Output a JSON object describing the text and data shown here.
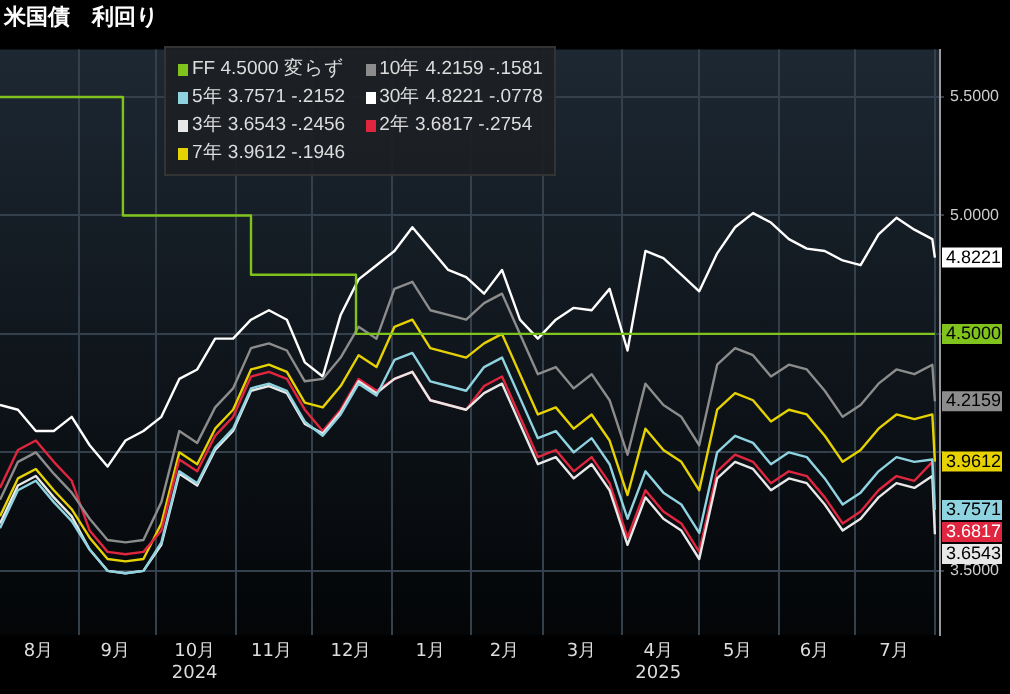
{
  "chart_data": {
    "type": "line",
    "title": "米国債　利回り",
    "x": [
      "2024-08-01",
      "2024-08-08",
      "2024-08-15",
      "2024-08-22",
      "2024-08-29",
      "2024-09-05",
      "2024-09-12",
      "2024-09-19",
      "2024-09-26",
      "2024-10-03",
      "2024-10-10",
      "2024-10-17",
      "2024-10-24",
      "2024-10-31",
      "2024-11-07",
      "2024-11-14",
      "2024-11-21",
      "2024-11-28",
      "2024-12-05",
      "2024-12-12",
      "2024-12-19",
      "2024-12-26",
      "2025-01-02",
      "2025-01-09",
      "2025-01-16",
      "2025-01-23",
      "2025-01-30",
      "2025-02-06",
      "2025-02-13",
      "2025-02-20",
      "2025-02-27",
      "2025-03-06",
      "2025-03-13",
      "2025-03-20",
      "2025-03-27",
      "2025-04-03",
      "2025-04-10",
      "2025-04-17",
      "2025-04-24",
      "2025-05-01",
      "2025-05-08",
      "2025-05-15",
      "2025-05-22",
      "2025-05-29",
      "2025-06-05",
      "2025-06-12",
      "2025-06-19",
      "2025-06-26",
      "2025-07-03",
      "2025-07-10",
      "2025-07-17",
      "2025-07-24",
      "2025-07-31",
      "2025-08-01"
    ],
    "series": [
      {
        "name": "FF 4.5000 変らず",
        "type": "step",
        "color": "#7fc31c",
        "x": [
          "2024-08-01",
          "2024-09-18",
          "2024-11-07",
          "2024-12-18",
          "2025-08-01"
        ],
        "values": [
          5.5,
          5.0,
          4.75,
          4.5,
          4.5
        ],
        "value_labels": [
          null,
          null,
          null,
          null,
          "4.5000"
        ]
      },
      {
        "name": "10年 4.2159 -.1581",
        "color": "#8c8c8c",
        "values": [
          3.8,
          3.96,
          4.0,
          3.91,
          3.83,
          3.72,
          3.63,
          3.62,
          3.63,
          3.79,
          4.09,
          4.04,
          4.19,
          4.27,
          4.44,
          4.46,
          4.43,
          4.3,
          4.31,
          4.4,
          4.53,
          4.48,
          4.69,
          4.72,
          4.6,
          4.58,
          4.56,
          4.63,
          4.67,
          4.5,
          4.33,
          4.36,
          4.27,
          4.33,
          4.22,
          3.99,
          4.29,
          4.2,
          4.15,
          4.03,
          4.37,
          4.44,
          4.41,
          4.32,
          4.37,
          4.35,
          4.26,
          4.15,
          4.2,
          4.29,
          4.35,
          4.33,
          4.37,
          4.2159
        ],
        "value_labels": [
          null,
          null,
          null,
          null,
          null,
          null,
          null,
          null,
          null,
          null,
          null,
          null,
          null,
          null,
          null,
          null,
          null,
          null,
          null,
          null,
          null,
          null,
          null,
          null,
          null,
          null,
          null,
          null,
          null,
          null,
          null,
          null,
          null,
          null,
          null,
          null,
          null,
          null,
          null,
          null,
          null,
          null,
          null,
          null,
          null,
          null,
          null,
          null,
          null,
          null,
          null,
          null,
          null,
          "4.2159"
        ]
      },
      {
        "name": "5年 3.7571 -.2152",
        "color": "#8fd3e0",
        "values": [
          3.68,
          3.84,
          3.88,
          3.79,
          3.71,
          3.59,
          3.5,
          3.49,
          3.5,
          3.62,
          3.92,
          3.87,
          4.02,
          4.1,
          4.27,
          4.29,
          4.26,
          4.13,
          4.07,
          4.16,
          4.29,
          4.24,
          4.39,
          4.42,
          4.3,
          4.28,
          4.26,
          4.36,
          4.4,
          4.23,
          4.06,
          4.09,
          4.0,
          4.06,
          3.95,
          3.72,
          3.92,
          3.83,
          3.78,
          3.66,
          4.0,
          4.07,
          4.04,
          3.95,
          4.0,
          3.98,
          3.89,
          3.78,
          3.83,
          3.92,
          3.98,
          3.96,
          3.97,
          3.7571
        ],
        "value_labels": [
          null,
          null,
          null,
          null,
          null,
          null,
          null,
          null,
          null,
          null,
          null,
          null,
          null,
          null,
          null,
          null,
          null,
          null,
          null,
          null,
          null,
          null,
          null,
          null,
          null,
          null,
          null,
          null,
          null,
          null,
          null,
          null,
          null,
          null,
          null,
          null,
          null,
          null,
          null,
          null,
          null,
          null,
          null,
          null,
          null,
          null,
          null,
          null,
          null,
          null,
          null,
          null,
          null,
          "3.7571"
        ]
      },
      {
        "name": "30年 4.8221 -.0778",
        "color": "#ffffff",
        "values": [
          4.2,
          4.18,
          4.09,
          4.09,
          4.15,
          4.03,
          3.94,
          4.05,
          4.09,
          4.15,
          4.31,
          4.35,
          4.48,
          4.48,
          4.56,
          4.6,
          4.56,
          4.38,
          4.32,
          4.58,
          4.73,
          4.79,
          4.85,
          4.95,
          4.86,
          4.77,
          4.74,
          4.67,
          4.77,
          4.56,
          4.48,
          4.56,
          4.61,
          4.6,
          4.69,
          4.43,
          4.85,
          4.82,
          4.75,
          4.68,
          4.84,
          4.95,
          5.01,
          4.97,
          4.9,
          4.86,
          4.85,
          4.81,
          4.79,
          4.92,
          4.99,
          4.94,
          4.9,
          4.8221
        ],
        "value_labels": [
          null,
          null,
          null,
          null,
          null,
          null,
          null,
          null,
          null,
          null,
          null,
          null,
          null,
          null,
          null,
          null,
          null,
          null,
          null,
          null,
          null,
          null,
          null,
          null,
          null,
          null,
          null,
          null,
          null,
          null,
          null,
          null,
          null,
          null,
          null,
          null,
          null,
          null,
          null,
          null,
          null,
          null,
          null,
          null,
          null,
          null,
          null,
          null,
          null,
          null,
          null,
          null,
          null,
          "4.8221"
        ]
      },
      {
        "name": "3年 3.6543 -.2456",
        "color": "#e8e8e8",
        "values": [
          3.7,
          3.86,
          3.9,
          3.81,
          3.73,
          3.59,
          3.5,
          3.49,
          3.5,
          3.61,
          3.91,
          3.86,
          4.01,
          4.09,
          4.26,
          4.28,
          4.25,
          4.12,
          4.08,
          4.17,
          4.3,
          4.25,
          4.31,
          4.34,
          4.22,
          4.2,
          4.18,
          4.25,
          4.29,
          4.12,
          3.95,
          3.98,
          3.89,
          3.95,
          3.84,
          3.61,
          3.81,
          3.72,
          3.67,
          3.55,
          3.89,
          3.96,
          3.93,
          3.84,
          3.89,
          3.87,
          3.78,
          3.67,
          3.72,
          3.81,
          3.87,
          3.85,
          3.9,
          3.6543
        ],
        "value_labels": [
          null,
          null,
          null,
          null,
          null,
          null,
          null,
          null,
          null,
          null,
          null,
          null,
          null,
          null,
          null,
          null,
          null,
          null,
          null,
          null,
          null,
          null,
          null,
          null,
          null,
          null,
          null,
          null,
          null,
          null,
          null,
          null,
          null,
          null,
          null,
          null,
          null,
          null,
          null,
          null,
          null,
          null,
          null,
          null,
          null,
          null,
          null,
          null,
          null,
          null,
          null,
          null,
          null,
          "3.6543"
        ]
      },
      {
        "name": "2年 3.6817 -.2754",
        "color": "#e0263f",
        "values": [
          3.85,
          4.01,
          4.05,
          3.96,
          3.88,
          3.67,
          3.58,
          3.57,
          3.58,
          3.67,
          3.97,
          3.92,
          4.07,
          4.15,
          4.32,
          4.34,
          4.31,
          4.18,
          4.09,
          4.18,
          4.31,
          4.26,
          4.31,
          4.34,
          4.22,
          4.2,
          4.18,
          4.28,
          4.32,
          4.15,
          3.98,
          4.01,
          3.92,
          3.98,
          3.87,
          3.64,
          3.84,
          3.75,
          3.7,
          3.58,
          3.92,
          3.99,
          3.96,
          3.87,
          3.92,
          3.9,
          3.81,
          3.7,
          3.75,
          3.84,
          3.9,
          3.88,
          3.96,
          3.6817
        ],
        "value_labels": [
          null,
          null,
          null,
          null,
          null,
          null,
          null,
          null,
          null,
          null,
          null,
          null,
          null,
          null,
          null,
          null,
          null,
          null,
          null,
          null,
          null,
          null,
          null,
          null,
          null,
          null,
          null,
          null,
          null,
          null,
          null,
          null,
          null,
          null,
          null,
          null,
          null,
          null,
          null,
          null,
          null,
          null,
          null,
          null,
          null,
          null,
          null,
          null,
          null,
          null,
          null,
          null,
          null,
          "3.6817"
        ]
      },
      {
        "name": "7年 3.9612 -.1946",
        "color": "#e6d200",
        "values": [
          3.73,
          3.89,
          3.93,
          3.84,
          3.76,
          3.64,
          3.55,
          3.54,
          3.55,
          3.7,
          4.0,
          3.95,
          4.1,
          4.18,
          4.35,
          4.37,
          4.34,
          4.21,
          4.19,
          4.28,
          4.41,
          4.36,
          4.53,
          4.56,
          4.44,
          4.42,
          4.4,
          4.46,
          4.5,
          4.33,
          4.16,
          4.19,
          4.1,
          4.16,
          4.05,
          3.82,
          4.1,
          4.01,
          3.96,
          3.84,
          4.18,
          4.25,
          4.22,
          4.13,
          4.18,
          4.16,
          4.07,
          3.96,
          4.01,
          4.1,
          4.16,
          4.14,
          4.16,
          3.9612
        ],
        "value_labels": [
          null,
          null,
          null,
          null,
          null,
          null,
          null,
          null,
          null,
          null,
          null,
          null,
          null,
          null,
          null,
          null,
          null,
          null,
          null,
          null,
          null,
          null,
          null,
          null,
          null,
          null,
          null,
          null,
          null,
          null,
          null,
          null,
          null,
          null,
          null,
          null,
          null,
          null,
          null,
          null,
          null,
          null,
          null,
          null,
          null,
          null,
          null,
          null,
          null,
          null,
          null,
          null,
          null,
          "3.9612"
        ]
      }
    ],
    "xlim": [
      "2024-08-01",
      "2025-08-03"
    ],
    "xticks": [
      {
        "value": "2024-08-16",
        "label": "8月"
      },
      {
        "value": "2024-09-01",
        "label": null
      },
      {
        "value": "2024-09-15",
        "label": "9月"
      },
      {
        "value": "2024-10-01",
        "label": null
      },
      {
        "value": "2024-10-16",
        "label": "10月\n2024"
      },
      {
        "value": "2024-11-01",
        "label": null
      },
      {
        "value": "2024-11-15",
        "label": "11月"
      },
      {
        "value": "2024-12-01",
        "label": null
      },
      {
        "value": "2024-12-16",
        "label": "12月"
      },
      {
        "value": "2025-01-01",
        "label": null
      },
      {
        "value": "2025-01-16",
        "label": "1月"
      },
      {
        "value": "2025-02-01",
        "label": null
      },
      {
        "value": "2025-02-14",
        "label": "2月"
      },
      {
        "value": "2025-03-01",
        "label": null
      },
      {
        "value": "2025-03-16",
        "label": "3月"
      },
      {
        "value": "2025-04-01",
        "label": null
      },
      {
        "value": "2025-04-15",
        "label": "4月\n2025"
      },
      {
        "value": "2025-05-01",
        "label": null
      },
      {
        "value": "2025-05-16",
        "label": "5月"
      },
      {
        "value": "2025-06-01",
        "label": null
      },
      {
        "value": "2025-06-15",
        "label": "6月"
      },
      {
        "value": "2025-07-01",
        "label": null
      },
      {
        "value": "2025-07-16",
        "label": "7月"
      },
      {
        "value": "2025-08-01",
        "label": null
      }
    ],
    "ylim": [
      3.23,
      5.7
    ],
    "yticks": [
      {
        "value": 3.5,
        "label": "3.5000"
      },
      {
        "value": 4.0,
        "label": null
      },
      {
        "value": 4.5,
        "label": null
      },
      {
        "value": 5.0,
        "label": "5.0000"
      },
      {
        "value": 5.5,
        "label": "5.5000"
      }
    ],
    "grid": true,
    "legend": "top left"
  }
}
